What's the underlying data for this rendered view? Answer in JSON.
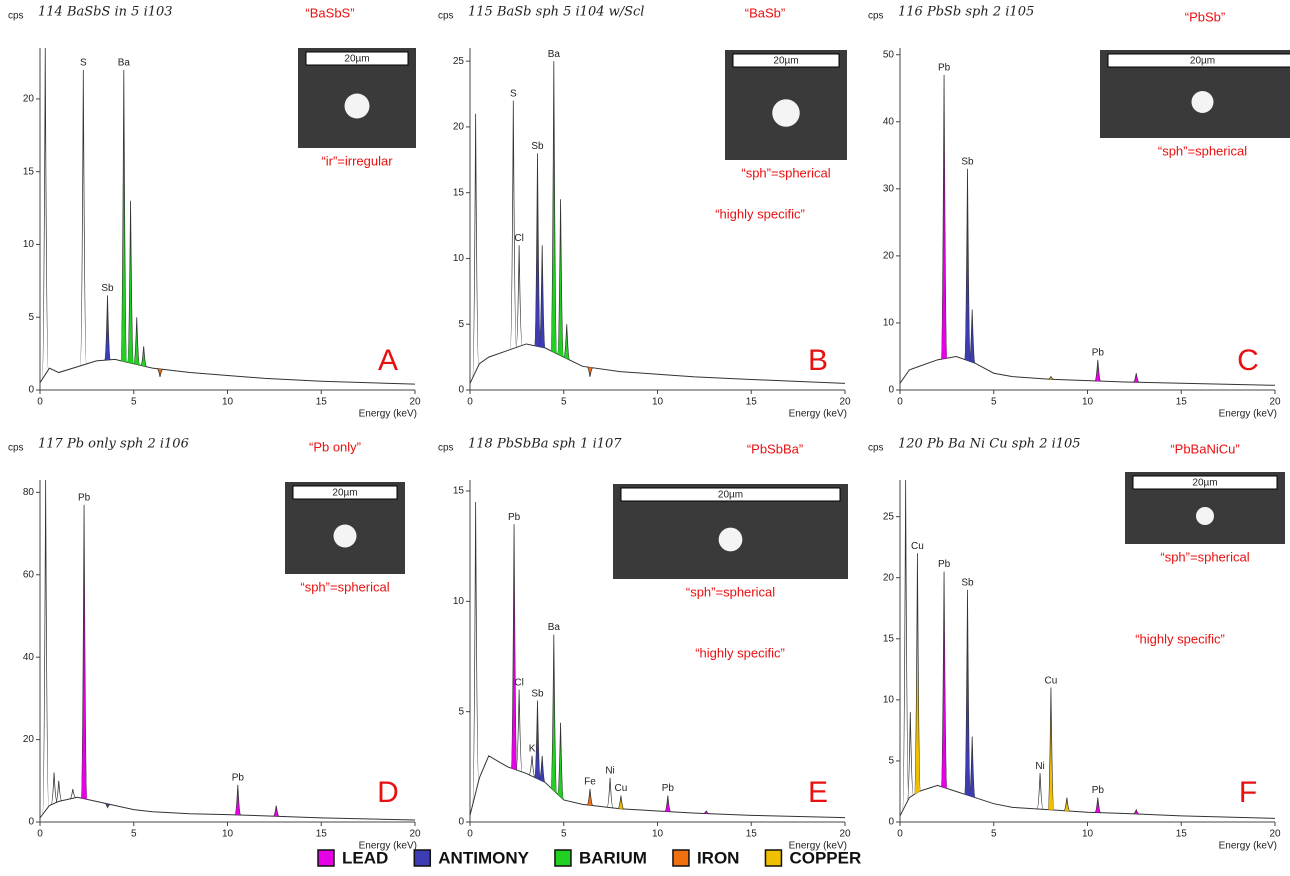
{
  "chart_data": [
    {
      "type": "spectrum",
      "note": "114 BaSbS in 5 i103",
      "label": "“BaSbS”",
      "shape": "“ir”=irregular",
      "remark": null,
      "panel": "A",
      "scale_bar": "20µm",
      "y_label": "cps",
      "x_label": "Energy (keV)",
      "xlim": [
        0,
        20
      ],
      "xticks": [
        0,
        5,
        10,
        15,
        20
      ],
      "ylim": [
        0,
        23.5
      ],
      "yticks": [
        0,
        5,
        10,
        15,
        20
      ],
      "x": [
        0,
        0.5,
        1,
        2,
        3,
        4,
        5,
        6,
        8,
        10,
        12,
        15,
        20
      ],
      "values": [
        0.5,
        1.5,
        1.2,
        1.6,
        2,
        2.1,
        1.8,
        1.5,
        1.2,
        1,
        0.8,
        0.6,
        0.4
      ],
      "peaks": [
        {
          "label": null,
          "x": 0.28,
          "value": 23.5,
          "color": null
        },
        {
          "label": "S",
          "x": 2.31,
          "value": 22,
          "color": null
        },
        {
          "label": "Sb",
          "x": 3.6,
          "value": 6.5,
          "color": "#3c3cb4"
        },
        {
          "label": "Ba",
          "x": 4.47,
          "value": 22,
          "color": "#22d022"
        },
        {
          "label": null,
          "x": 4.83,
          "value": 13,
          "color": "#22d022"
        },
        {
          "label": null,
          "x": 5.16,
          "value": 5,
          "color": "#22d022"
        },
        {
          "label": null,
          "x": 5.53,
          "value": 3,
          "color": "#22d022"
        },
        {
          "label": null,
          "x": 6.4,
          "value": 0.9,
          "color": "#f07010"
        }
      ]
    },
    {
      "type": "spectrum",
      "note": "115 BaSb sph 5 i104 w/Scl",
      "label": "“BaSb”",
      "shape": "“sph”=spherical",
      "remark": "“highly specific”",
      "panel": "B",
      "scale_bar": "20µm",
      "y_label": "cps",
      "x_label": "Energy (keV)",
      "xlim": [
        0,
        20
      ],
      "xticks": [
        0,
        5,
        10,
        15,
        20
      ],
      "ylim": [
        0,
        26
      ],
      "yticks": [
        0,
        5,
        10,
        15,
        20,
        25
      ],
      "x": [
        0,
        0.5,
        1,
        2,
        3,
        4,
        5,
        6,
        8,
        10,
        12,
        15,
        20
      ],
      "values": [
        0.5,
        2,
        2.5,
        3,
        3.5,
        3.2,
        2.5,
        1.8,
        1.4,
        1.2,
        1,
        0.8,
        0.5
      ],
      "peaks": [
        {
          "label": null,
          "x": 0.3,
          "value": 21,
          "color": null
        },
        {
          "label": "S",
          "x": 2.31,
          "value": 22,
          "color": null
        },
        {
          "label": "Cl",
          "x": 2.62,
          "value": 11,
          "color": null
        },
        {
          "label": "Sb",
          "x": 3.6,
          "value": 18,
          "color": "#3c3cb4"
        },
        {
          "label": null,
          "x": 3.85,
          "value": 11,
          "color": "#3c3cb4"
        },
        {
          "label": "Ba",
          "x": 4.47,
          "value": 25,
          "color": "#22d022"
        },
        {
          "label": null,
          "x": 4.83,
          "value": 14.5,
          "color": "#22d022"
        },
        {
          "label": null,
          "x": 5.16,
          "value": 5,
          "color": "#22d022"
        },
        {
          "label": null,
          "x": 6.4,
          "value": 1,
          "color": "#f07010"
        }
      ]
    },
    {
      "type": "spectrum",
      "note": "116 PbSb sph 2 i105",
      "label": "“PbSb”",
      "shape": "“sph”=spherical",
      "remark": null,
      "panel": "C",
      "scale_bar": "20µm",
      "y_label": "cps",
      "x_label": "Energy (keV)",
      "xlim": [
        0,
        20
      ],
      "xticks": [
        0,
        5,
        10,
        15,
        20
      ],
      "ylim": [
        0,
        51
      ],
      "yticks": [
        0,
        10,
        20,
        30,
        40,
        50
      ],
      "x": [
        0,
        0.5,
        1,
        2,
        3,
        4,
        5,
        6,
        8,
        10,
        12,
        15,
        20
      ],
      "values": [
        1,
        3,
        3.5,
        4.5,
        5,
        4,
        2.5,
        2,
        1.6,
        1.4,
        1.2,
        1,
        0.7
      ],
      "peaks": [
        {
          "label": "Pb",
          "x": 2.35,
          "value": 47,
          "color": "#e600e6"
        },
        {
          "label": "Sb",
          "x": 3.6,
          "value": 33,
          "color": "#3c3cb4"
        },
        {
          "label": null,
          "x": 3.85,
          "value": 12,
          "color": "#3c3cb4"
        },
        {
          "label": null,
          "x": 8.05,
          "value": 2,
          "color": "#f0c000"
        },
        {
          "label": "Pb",
          "x": 10.55,
          "value": 4.5,
          "color": "#e600e6"
        },
        {
          "label": null,
          "x": 12.6,
          "value": 2.5,
          "color": "#e600e6"
        }
      ]
    },
    {
      "type": "spectrum",
      "note": "117 Pb only sph 2 i106",
      "label": "“Pb only”",
      "shape": "“sph”=spherical",
      "remark": null,
      "panel": "D",
      "scale_bar": "20µm",
      "y_label": "cps",
      "x_label": "Energy (keV)",
      "xlim": [
        0,
        20
      ],
      "xticks": [
        0,
        5,
        10,
        15,
        20
      ],
      "ylim": [
        0,
        83
      ],
      "yticks": [
        0,
        20,
        40,
        60,
        80
      ],
      "x": [
        0,
        0.5,
        1,
        2,
        3,
        4,
        5,
        6,
        8,
        10,
        12,
        15,
        20
      ],
      "values": [
        1,
        4,
        5,
        6,
        5,
        4,
        3,
        2.5,
        2,
        1.8,
        1.5,
        1,
        0.5
      ],
      "peaks": [
        {
          "label": null,
          "x": 0.3,
          "value": 83,
          "color": null
        },
        {
          "label": null,
          "x": 0.75,
          "value": 12,
          "color": null
        },
        {
          "label": null,
          "x": 1.0,
          "value": 10,
          "color": null
        },
        {
          "label": null,
          "x": 1.75,
          "value": 8,
          "color": null
        },
        {
          "label": "Pb",
          "x": 2.35,
          "value": 77,
          "color": "#e600e6"
        },
        {
          "label": null,
          "x": 3.6,
          "value": 3.5,
          "color": "#3c3cb4"
        },
        {
          "label": "Pb",
          "x": 10.55,
          "value": 9,
          "color": "#e600e6"
        },
        {
          "label": null,
          "x": 12.6,
          "value": 4,
          "color": "#e600e6"
        }
      ]
    },
    {
      "type": "spectrum",
      "note": "118 PbSbBa sph 1 i107",
      "label": "“PbSbBa”",
      "shape": "“sph”=spherical",
      "remark": "“highly specific”",
      "panel": "E",
      "scale_bar": "20µm",
      "y_label": "cps",
      "x_label": "Energy (keV)",
      "xlim": [
        0,
        20
      ],
      "xticks": [
        0,
        5,
        10,
        15,
        20
      ],
      "ylim": [
        0,
        15.5
      ],
      "yticks": [
        0,
        5,
        10,
        15
      ],
      "x": [
        0,
        0.5,
        1,
        2,
        3,
        4,
        5,
        6,
        8,
        10,
        12,
        15,
        20
      ],
      "values": [
        0.3,
        2,
        3,
        2.5,
        2.2,
        1.8,
        1,
        0.8,
        0.6,
        0.5,
        0.4,
        0.3,
        0.2
      ],
      "peaks": [
        {
          "label": null,
          "x": 0.3,
          "value": 14.5,
          "color": null
        },
        {
          "label": "Pb",
          "x": 2.35,
          "value": 13.5,
          "color": "#e600e6"
        },
        {
          "label": "Cl",
          "x": 2.62,
          "value": 6,
          "color": null
        },
        {
          "label": "K",
          "x": 3.31,
          "value": 3,
          "color": null
        },
        {
          "label": "Sb",
          "x": 3.6,
          "value": 5.5,
          "color": "#3c3cb4"
        },
        {
          "label": null,
          "x": 3.85,
          "value": 3,
          "color": "#3c3cb4"
        },
        {
          "label": "Ba",
          "x": 4.47,
          "value": 8.5,
          "color": "#22d022"
        },
        {
          "label": null,
          "x": 4.83,
          "value": 4.5,
          "color": "#22d022"
        },
        {
          "label": "Fe",
          "x": 6.4,
          "value": 1.5,
          "color": "#f07010"
        },
        {
          "label": "Ni",
          "x": 7.47,
          "value": 2,
          "color": null
        },
        {
          "label": "Cu",
          "x": 8.05,
          "value": 1.2,
          "color": "#f0c000"
        },
        {
          "label": "Pb",
          "x": 10.55,
          "value": 1.2,
          "color": "#e600e6"
        },
        {
          "label": null,
          "x": 12.6,
          "value": 0.5,
          "color": "#e600e6"
        }
      ]
    },
    {
      "type": "spectrum",
      "note": "120 Pb Ba Ni Cu sph 2 i105",
      "label": "“PbBaNiCu”",
      "shape": "“sph”=spherical",
      "remark": "“highly specific”",
      "panel": "F",
      "scale_bar": "20µm",
      "y_label": "cps",
      "x_label": "Energy (keV)",
      "xlim": [
        0,
        20
      ],
      "xticks": [
        0,
        5,
        10,
        15,
        20
      ],
      "ylim": [
        0,
        28
      ],
      "yticks": [
        0,
        5,
        10,
        15,
        20,
        25
      ],
      "x": [
        0,
        0.5,
        1,
        2,
        3,
        4,
        5,
        6,
        8,
        10,
        12,
        15,
        20
      ],
      "values": [
        0.5,
        2,
        2.5,
        3,
        2.5,
        2,
        1.5,
        1.2,
        1,
        0.8,
        0.7,
        0.5,
        0.3
      ],
      "peaks": [
        {
          "label": null,
          "x": 0.3,
          "value": 28,
          "color": null
        },
        {
          "label": null,
          "x": 0.55,
          "value": 9,
          "color": null
        },
        {
          "label": "Cu",
          "x": 0.93,
          "value": 22,
          "color": "#f0c000"
        },
        {
          "label": "Pb",
          "x": 2.35,
          "value": 20.5,
          "color": "#e600e6"
        },
        {
          "label": "Sb",
          "x": 3.6,
          "value": 19,
          "color": "#3c3cb4"
        },
        {
          "label": null,
          "x": 3.85,
          "value": 7,
          "color": "#3c3cb4"
        },
        {
          "label": "Ni",
          "x": 7.47,
          "value": 4,
          "color": null
        },
        {
          "label": "Cu",
          "x": 8.05,
          "value": 11,
          "color": "#f0c000"
        },
        {
          "label": null,
          "x": 8.9,
          "value": 2,
          "color": "#f0c000"
        },
        {
          "label": "Pb",
          "x": 10.55,
          "value": 2,
          "color": "#e600e6"
        },
        {
          "label": null,
          "x": 12.6,
          "value": 1,
          "color": "#e600e6"
        }
      ]
    }
  ],
  "legend": [
    {
      "name": "LEAD",
      "color": "#e600e6"
    },
    {
      "name": "ANTIMONY",
      "color": "#3c3cb4"
    },
    {
      "name": "BARIUM",
      "color": "#22d022"
    },
    {
      "name": "IRON",
      "color": "#f07010"
    },
    {
      "name": "COPPER",
      "color": "#f0c000"
    }
  ]
}
